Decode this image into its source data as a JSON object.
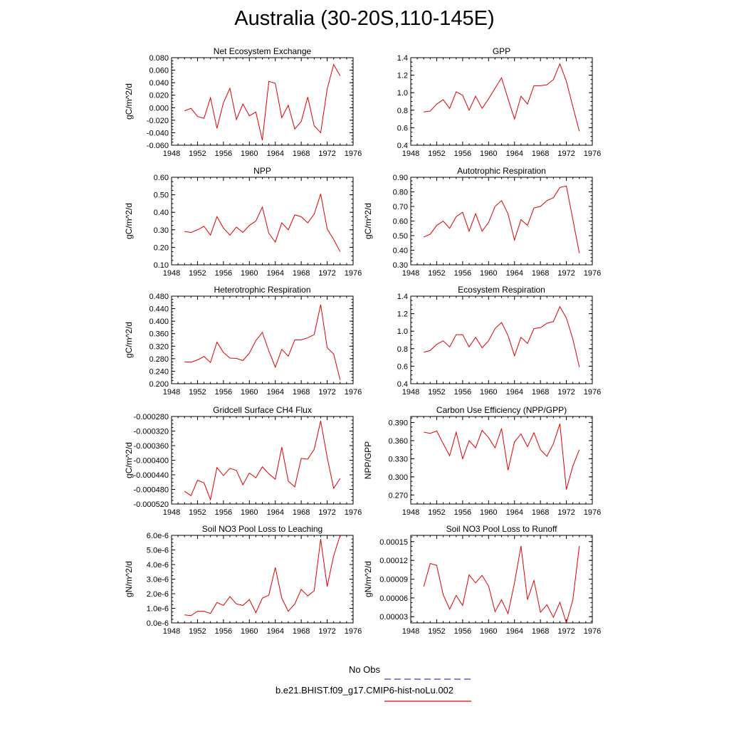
{
  "title": "Australia (30-20S,110-145E)",
  "legend": {
    "obs_label": "No Obs",
    "obs_color": "#3b3bd6",
    "model_label": "b.e21.BHIST.f09_g17.CMIP6-hist-noLu.002",
    "model_color": "#e00000"
  },
  "chart_data": [
    {
      "type": "line",
      "title": "Net Ecosystem Exchange",
      "ylabel": "gC/m^2/d",
      "xlim": [
        1948,
        1976
      ],
      "xticks": [
        "1948",
        "1952",
        "1956",
        "1960",
        "1964",
        "1968",
        "1972",
        "1976"
      ],
      "ylim": [
        -0.06,
        0.08
      ],
      "yticks": [
        "-0.060",
        "-0.040",
        "-0.020",
        "0.000",
        "0.020",
        "0.040",
        "0.060",
        "0.080"
      ],
      "x": [
        1950,
        1951,
        1952,
        1953,
        1954,
        1955,
        1956,
        1957,
        1958,
        1959,
        1960,
        1961,
        1962,
        1963,
        1964,
        1965,
        1966,
        1967,
        1968,
        1969,
        1970,
        1971,
        1972,
        1973,
        1974
      ],
      "y": [
        -0.005,
        -0.001,
        -0.014,
        -0.017,
        0.016,
        -0.033,
        0.008,
        0.031,
        -0.019,
        0.006,
        -0.013,
        -0.007,
        -0.052,
        0.042,
        0.039,
        -0.016,
        0.004,
        -0.034,
        -0.022,
        0.017,
        -0.029,
        -0.04,
        0.03,
        0.069,
        0.051
      ]
    },
    {
      "type": "line",
      "title": "GPP",
      "ylabel": "",
      "xlim": [
        1948,
        1976
      ],
      "xticks": [
        "1948",
        "1952",
        "1956",
        "1960",
        "1964",
        "1968",
        "1972",
        "1976"
      ],
      "ylim": [
        0.4,
        1.4
      ],
      "yticks": [
        "0.4",
        "0.6",
        "0.8",
        "1.0",
        "1.2",
        "1.4"
      ],
      "x": [
        1950,
        1951,
        1952,
        1953,
        1954,
        1955,
        1956,
        1957,
        1958,
        1959,
        1960,
        1961,
        1962,
        1963,
        1964,
        1965,
        1966,
        1967,
        1968,
        1969,
        1970,
        1971,
        1972,
        1973,
        1974
      ],
      "y": [
        0.78,
        0.79,
        0.87,
        0.92,
        0.82,
        1.01,
        0.97,
        0.8,
        0.96,
        0.82,
        0.93,
        1.05,
        1.17,
        0.93,
        0.7,
        0.96,
        0.87,
        1.08,
        1.08,
        1.09,
        1.15,
        1.33,
        1.13,
        0.84,
        0.56
      ]
    },
    {
      "type": "line",
      "title": "NPP",
      "ylabel": "gC/m^2/d",
      "xlim": [
        1948,
        1976
      ],
      "xticks": [
        "1948",
        "1952",
        "1956",
        "1960",
        "1964",
        "1968",
        "1972",
        "1976"
      ],
      "ylim": [
        0.1,
        0.6
      ],
      "yticks": [
        "0.10",
        "0.20",
        "0.30",
        "0.40",
        "0.50",
        "0.60"
      ],
      "x": [
        1950,
        1951,
        1952,
        1953,
        1954,
        1955,
        1956,
        1957,
        1958,
        1959,
        1960,
        1961,
        1962,
        1963,
        1964,
        1965,
        1966,
        1967,
        1968,
        1969,
        1970,
        1971,
        1972,
        1973,
        1974
      ],
      "y": [
        0.29,
        0.285,
        0.3,
        0.32,
        0.27,
        0.375,
        0.31,
        0.27,
        0.315,
        0.285,
        0.325,
        0.35,
        0.43,
        0.28,
        0.23,
        0.34,
        0.3,
        0.385,
        0.375,
        0.34,
        0.39,
        0.505,
        0.305,
        0.245,
        0.175
      ]
    },
    {
      "type": "line",
      "title": "Autotrophic Respiration",
      "ylabel": "gC/m^2/d",
      "xlim": [
        1948,
        1976
      ],
      "xticks": [
        "1948",
        "1952",
        "1956",
        "1960",
        "1964",
        "1968",
        "1972",
        "1976"
      ],
      "ylim": [
        0.3,
        0.9
      ],
      "yticks": [
        "0.30",
        "0.40",
        "0.50",
        "0.60",
        "0.70",
        "0.80",
        "0.90"
      ],
      "x": [
        1950,
        1951,
        1952,
        1953,
        1954,
        1955,
        1956,
        1957,
        1958,
        1959,
        1960,
        1961,
        1962,
        1963,
        1964,
        1965,
        1966,
        1967,
        1968,
        1969,
        1970,
        1971,
        1972,
        1973,
        1974
      ],
      "y": [
        0.49,
        0.51,
        0.57,
        0.6,
        0.55,
        0.63,
        0.66,
        0.53,
        0.65,
        0.53,
        0.59,
        0.7,
        0.74,
        0.65,
        0.47,
        0.61,
        0.57,
        0.69,
        0.7,
        0.74,
        0.76,
        0.83,
        0.84,
        0.61,
        0.38
      ]
    },
    {
      "type": "line",
      "title": "Heterotrophic Respiration",
      "ylabel": "gC/m^2/d",
      "xlim": [
        1948,
        1976
      ],
      "xticks": [
        "1948",
        "1952",
        "1956",
        "1960",
        "1964",
        "1968",
        "1972",
        "1976"
      ],
      "ylim": [
        0.2,
        0.48
      ],
      "yticks": [
        "0.200",
        "0.240",
        "0.280",
        "0.320",
        "0.360",
        "0.400",
        "0.440",
        "0.480"
      ],
      "x": [
        1950,
        1951,
        1952,
        1953,
        1954,
        1955,
        1956,
        1957,
        1958,
        1959,
        1960,
        1961,
        1962,
        1963,
        1964,
        1965,
        1966,
        1967,
        1968,
        1969,
        1970,
        1971,
        1972,
        1973,
        1974
      ],
      "y": [
        0.27,
        0.269,
        0.276,
        0.287,
        0.268,
        0.333,
        0.3,
        0.282,
        0.281,
        0.274,
        0.298,
        0.338,
        0.364,
        0.305,
        0.253,
        0.31,
        0.288,
        0.34,
        0.34,
        0.347,
        0.357,
        0.453,
        0.315,
        0.295,
        0.212
      ]
    },
    {
      "type": "line",
      "title": "Ecosystem Respiration",
      "ylabel": "",
      "xlim": [
        1948,
        1976
      ],
      "xticks": [
        "1948",
        "1952",
        "1956",
        "1960",
        "1964",
        "1968",
        "1972",
        "1976"
      ],
      "ylim": [
        0.4,
        1.4
      ],
      "yticks": [
        "0.4",
        "0.6",
        "0.8",
        "1.0",
        "1.2",
        "1.4"
      ],
      "x": [
        1950,
        1951,
        1952,
        1953,
        1954,
        1955,
        1956,
        1957,
        1958,
        1959,
        1960,
        1961,
        1962,
        1963,
        1964,
        1965,
        1966,
        1967,
        1968,
        1969,
        1970,
        1971,
        1972,
        1973,
        1974
      ],
      "y": [
        0.76,
        0.78,
        0.85,
        0.89,
        0.82,
        0.96,
        0.96,
        0.82,
        0.93,
        0.81,
        0.89,
        1.03,
        1.1,
        0.95,
        0.72,
        0.93,
        0.86,
        1.03,
        1.04,
        1.09,
        1.11,
        1.28,
        1.15,
        0.91,
        0.59
      ]
    },
    {
      "type": "line",
      "title": "Gridcell Surface CH4 Flux",
      "ylabel": "gC/m^2/d",
      "xlim": [
        1948,
        1976
      ],
      "xticks": [
        "1948",
        "1952",
        "1956",
        "1960",
        "1964",
        "1968",
        "1972",
        "1976"
      ],
      "ylim": [
        -0.00052,
        -0.00028
      ],
      "yticks": [
        "-0.000520",
        "-0.000480",
        "-0.000440",
        "-0.000400",
        "-0.000360",
        "-0.000320",
        "-0.000280"
      ],
      "x": [
        1950,
        1951,
        1952,
        1953,
        1954,
        1955,
        1956,
        1957,
        1958,
        1959,
        1960,
        1961,
        1962,
        1963,
        1964,
        1965,
        1966,
        1967,
        1968,
        1969,
        1970,
        1971,
        1972,
        1973,
        1974
      ],
      "y": [
        -0.000485,
        -0.000497,
        -0.000455,
        -0.000462,
        -0.000508,
        -0.00042,
        -0.000442,
        -0.000422,
        -0.000428,
        -0.000467,
        -0.000435,
        -0.000448,
        -0.000418,
        -0.000437,
        -0.000452,
        -0.000364,
        -0.000457,
        -0.000473,
        -0.000395,
        -0.000397,
        -0.00037,
        -0.000292,
        -0.000392,
        -0.000477,
        -0.00045
      ]
    },
    {
      "type": "line",
      "title": "Carbon Use Efficiency (NPP/GPP)",
      "ylabel": "NPP/GPP",
      "xlim": [
        1948,
        1976
      ],
      "xticks": [
        "1948",
        "1952",
        "1956",
        "1960",
        "1964",
        "1968",
        "1972",
        "1976"
      ],
      "ylim": [
        0.255,
        0.4
      ],
      "yticks": [
        "0.270",
        "0.300",
        "0.330",
        "0.360",
        "0.390"
      ],
      "x": [
        1950,
        1951,
        1952,
        1953,
        1954,
        1955,
        1956,
        1957,
        1958,
        1959,
        1960,
        1961,
        1962,
        1963,
        1964,
        1965,
        1966,
        1967,
        1968,
        1969,
        1970,
        1971,
        1972,
        1973,
        1974
      ],
      "y": [
        0.374,
        0.372,
        0.376,
        0.355,
        0.335,
        0.374,
        0.33,
        0.36,
        0.348,
        0.377,
        0.365,
        0.348,
        0.38,
        0.311,
        0.358,
        0.371,
        0.35,
        0.373,
        0.345,
        0.334,
        0.355,
        0.388,
        0.279,
        0.318,
        0.345
      ]
    },
    {
      "type": "line",
      "title": "Soil NO3 Pool Loss to Leaching",
      "ylabel": "gN/m^2/d",
      "xlim": [
        1948,
        1976
      ],
      "xticks": [
        "1948",
        "1952",
        "1956",
        "1960",
        "1964",
        "1968",
        "1972",
        "1976"
      ],
      "ylim": [
        0,
        6e-06
      ],
      "yticks": [
        "0.0e-6",
        "1.0e-6",
        "2.0e-6",
        "3.0e-6",
        "4.0e-6",
        "5.0e-6",
        "6.0e-6"
      ],
      "x": [
        1950,
        1951,
        1952,
        1953,
        1954,
        1955,
        1956,
        1957,
        1958,
        1959,
        1960,
        1961,
        1962,
        1963,
        1964,
        1965,
        1966,
        1967,
        1968,
        1969,
        1970,
        1971,
        1972,
        1973,
        1974
      ],
      "y": [
        5.5e-07,
        5e-07,
        8e-07,
        8e-07,
        6.5e-07,
        1.4e-06,
        1.2e-06,
        1.8e-06,
        1.3e-06,
        1.2e-06,
        1.6e-06,
        7e-07,
        1.7e-06,
        1.9e-06,
        3.8e-06,
        1.7e-06,
        8e-07,
        1.3e-06,
        2.3e-06,
        1.85e-06,
        2.2e-06,
        5.75e-06,
        2.5e-06,
        4.6e-06,
        6e-06
      ]
    },
    {
      "type": "line",
      "title": "Soil NO3 Pool Loss to Runoff",
      "ylabel": "gN/m^2/d",
      "xlim": [
        1948,
        1976
      ],
      "xticks": [
        "1948",
        "1952",
        "1956",
        "1960",
        "1964",
        "1968",
        "1972",
        "1976"
      ],
      "ylim": [
        2e-05,
        0.00016
      ],
      "yticks": [
        "0.00003",
        "0.00006",
        "0.00009",
        "0.00012",
        "0.00015"
      ],
      "x": [
        1950,
        1951,
        1952,
        1953,
        1954,
        1955,
        1956,
        1957,
        1958,
        1959,
        1960,
        1961,
        1962,
        1963,
        1964,
        1965,
        1966,
        1967,
        1968,
        1969,
        1970,
        1971,
        1972,
        1973,
        1974
      ],
      "y": [
        7.8e-05,
        0.000115,
        0.000112,
        6.5e-05,
        4.2e-05,
        6.4e-05,
        4.8e-05,
        9.7e-05,
        8.4e-05,
        9.6e-05,
        7.9e-05,
        3.8e-05,
        5.7e-05,
        3.5e-05,
        8.4e-05,
        0.000143,
        5.7e-05,
        8.8e-05,
        3.7e-05,
        4.9e-05,
        2.9e-05,
        5.3e-05,
        2e-05,
        5.7e-05,
        0.000143
      ]
    }
  ]
}
